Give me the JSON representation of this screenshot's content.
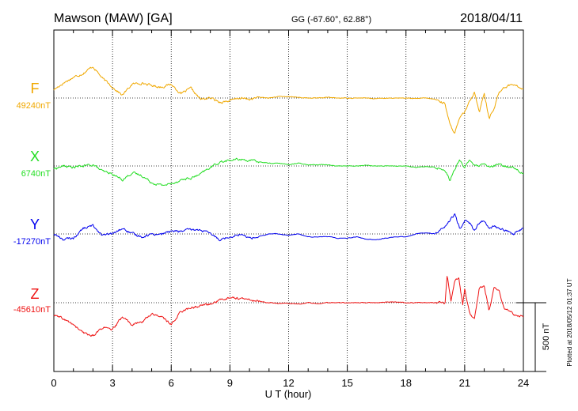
{
  "header": {
    "station": "Mawson (MAW)  [GA]",
    "coords": "GG (-67.60°,  62.88°)",
    "date": "2018/04/11"
  },
  "side_note": "Plotted at 2018/05/12 01:37  UT",
  "scale_label": "500 nT",
  "chart_data": {
    "type": "line",
    "title": "Mawson (MAW)  [GA]",
    "xlabel": "U T (hour)",
    "ylabel": "",
    "xlim": [
      0,
      24
    ],
    "x_ticks": [
      0,
      3,
      6,
      9,
      12,
      15,
      18,
      21,
      24
    ],
    "x_tick_labels": [
      "0",
      "3",
      "6",
      "9",
      "12",
      "15",
      "18",
      "21",
      "24"
    ],
    "grid": true,
    "grid_x": [
      3,
      6,
      9,
      12,
      15,
      18,
      21
    ],
    "y_unit": "nT",
    "scale_bar_nT": 500,
    "series": [
      {
        "name": "F",
        "baseline_label": "49240nT",
        "baseline": 49240,
        "color": "#f0a800",
        "x": [
          0,
          0.5,
          1,
          1.5,
          2,
          2.5,
          3,
          3.5,
          4,
          4.5,
          5,
          5.5,
          6,
          6.5,
          7,
          7.5,
          8,
          8.5,
          9,
          9.5,
          10,
          10.5,
          11,
          11.5,
          12,
          12.5,
          13,
          13.5,
          14,
          14.5,
          15,
          15.5,
          16,
          16.5,
          17,
          17.5,
          18,
          18.5,
          19,
          19.5,
          20,
          20.25,
          20.5,
          20.75,
          21,
          21.25,
          21.5,
          21.75,
          22,
          22.25,
          22.5,
          22.75,
          23,
          23.5,
          24
        ],
        "values": [
          60,
          110,
          150,
          180,
          230,
          140,
          80,
          20,
          100,
          110,
          90,
          80,
          100,
          30,
          70,
          -10,
          0,
          -30,
          -20,
          0,
          -10,
          5,
          0,
          10,
          10,
          5,
          0,
          0,
          5,
          0,
          0,
          0,
          0,
          -5,
          0,
          0,
          0,
          -5,
          0,
          -10,
          -40,
          -200,
          -250,
          -150,
          -100,
          -30,
          50,
          -100,
          40,
          -150,
          -80,
          40,
          80,
          100,
          60
        ]
      },
      {
        "name": "X",
        "baseline_label": "6740nT",
        "baseline": 6740,
        "color": "#22dd22",
        "x": [
          0,
          0.5,
          1,
          1.5,
          2,
          2.5,
          3,
          3.5,
          4,
          4.5,
          5,
          5.5,
          6,
          6.5,
          7,
          7.5,
          8,
          8.5,
          9,
          9.5,
          10,
          10.5,
          11,
          11.5,
          12,
          12.5,
          13,
          13.5,
          14,
          14.5,
          15,
          15.5,
          16,
          16.5,
          17,
          17.5,
          18,
          18.5,
          19,
          19.5,
          20,
          20.25,
          20.5,
          20.75,
          21,
          21.25,
          21.5,
          21.75,
          22,
          22.25,
          22.5,
          22.75,
          23,
          23.5,
          24
        ],
        "values": [
          -20,
          0,
          -10,
          0,
          10,
          -40,
          -60,
          -100,
          -50,
          -70,
          -120,
          -140,
          -130,
          -100,
          -90,
          -60,
          -10,
          30,
          40,
          50,
          40,
          30,
          20,
          20,
          10,
          20,
          10,
          10,
          10,
          0,
          0,
          0,
          5,
          0,
          0,
          0,
          0,
          -10,
          -5,
          -10,
          -30,
          -100,
          -20,
          40,
          -10,
          50,
          0,
          0,
          10,
          -10,
          0,
          10,
          0,
          -10,
          -60
        ]
      },
      {
        "name": "Y",
        "baseline_label": "-17270nT",
        "baseline": -17270,
        "color": "#0000ee",
        "x": [
          0,
          0.5,
          1,
          1.5,
          2,
          2.5,
          3,
          3.5,
          4,
          4.5,
          5,
          5.5,
          6,
          6.5,
          7,
          7.5,
          8,
          8.5,
          9,
          9.5,
          10,
          10.5,
          11,
          11.5,
          12,
          12.5,
          13,
          13.5,
          14,
          14.5,
          15,
          15.5,
          16,
          16.5,
          17,
          17.5,
          18,
          18.5,
          19,
          19.5,
          20,
          20.25,
          20.5,
          20.75,
          21,
          21.25,
          21.5,
          21.75,
          22,
          22.25,
          22.5,
          22.75,
          23,
          23.5,
          24
        ],
        "values": [
          0,
          -40,
          -30,
          40,
          60,
          -10,
          0,
          40,
          0,
          -20,
          0,
          0,
          20,
          20,
          30,
          30,
          0,
          -40,
          -20,
          0,
          -30,
          -20,
          0,
          0,
          -10,
          0,
          -20,
          -20,
          -20,
          -30,
          -30,
          -20,
          -40,
          -40,
          -30,
          -20,
          -20,
          0,
          10,
          0,
          50,
          100,
          140,
          40,
          100,
          80,
          20,
          80,
          100,
          30,
          60,
          40,
          30,
          0,
          40
        ]
      },
      {
        "name": "Z",
        "baseline_label": "-45610nT",
        "baseline": -45610,
        "color": "#ee1111",
        "x": [
          0,
          0.5,
          1,
          1.5,
          2,
          2.5,
          3,
          3.5,
          4,
          4.5,
          5,
          5.5,
          6,
          6.5,
          7,
          7.5,
          8,
          8.5,
          9,
          9.5,
          10,
          10.5,
          11,
          11.5,
          12,
          12.5,
          13,
          13.5,
          14,
          14.5,
          15,
          15.5,
          16,
          16.5,
          17,
          17.5,
          18,
          18.5,
          19,
          19.5,
          20,
          20.1,
          20.3,
          20.5,
          20.7,
          20.9,
          21,
          21.25,
          21.5,
          21.75,
          22,
          22.25,
          22.5,
          22.75,
          23,
          23.5,
          24
        ],
        "values": [
          -90,
          -120,
          -160,
          -220,
          -240,
          -180,
          -200,
          -100,
          -160,
          -140,
          -80,
          -100,
          -160,
          -60,
          -40,
          -20,
          -10,
          20,
          40,
          30,
          20,
          10,
          0,
          -5,
          -5,
          -10,
          0,
          -5,
          0,
          0,
          0,
          0,
          0,
          0,
          5,
          5,
          0,
          0,
          0,
          0,
          0,
          200,
          20,
          160,
          180,
          -20,
          100,
          -80,
          -120,
          110,
          120,
          -60,
          110,
          90,
          -40,
          -80,
          -100
        ]
      }
    ]
  }
}
